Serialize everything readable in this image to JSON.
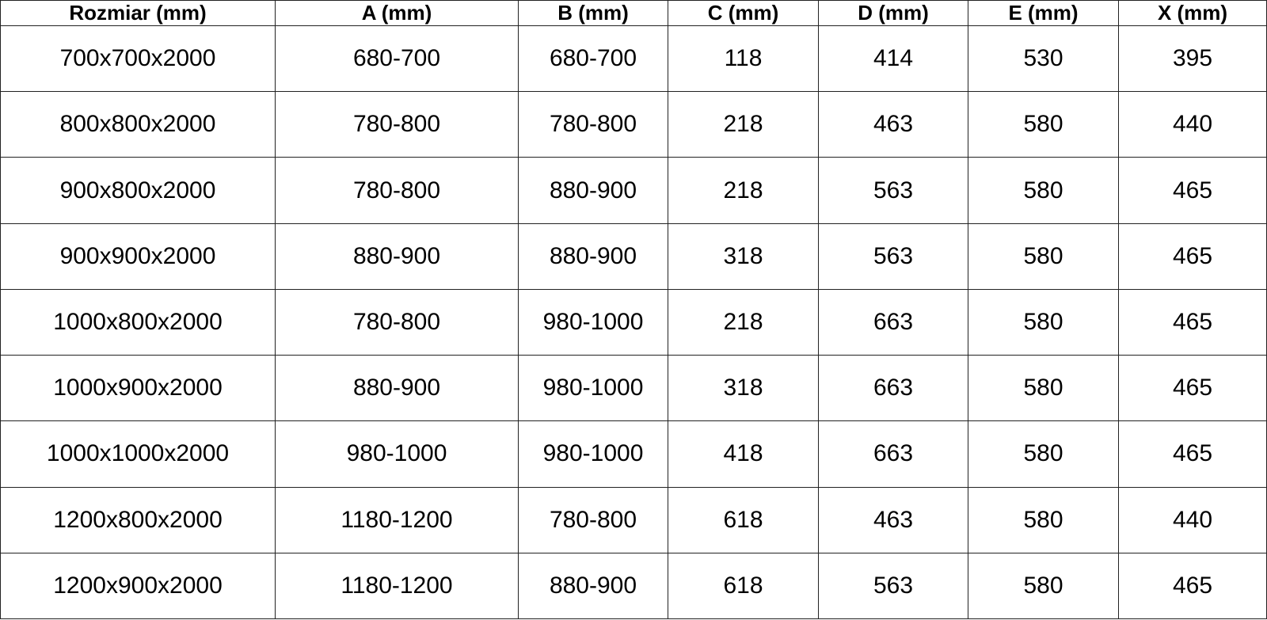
{
  "table": {
    "headers": [
      "Rozmiar (mm)",
      "A (mm)",
      "B (mm)",
      "C (mm)",
      "D (mm)",
      "E (mm)",
      "X (mm)"
    ],
    "rows": [
      [
        "700x700x2000",
        "680-700",
        "680-700",
        "118",
        "414",
        "530",
        "395"
      ],
      [
        "800x800x2000",
        "780-800",
        "780-800",
        "218",
        "463",
        "580",
        "440"
      ],
      [
        "900x800x2000",
        "780-800",
        "880-900",
        "218",
        "563",
        "580",
        "465"
      ],
      [
        "900x900x2000",
        "880-900",
        "880-900",
        "318",
        "563",
        "580",
        "465"
      ],
      [
        "1000x800x2000",
        "780-800",
        "980-1000",
        "218",
        "663",
        "580",
        "465"
      ],
      [
        "1000x900x2000",
        "880-900",
        "980-1000",
        "318",
        "663",
        "580",
        "465"
      ],
      [
        "1000x1000x2000",
        "980-1000",
        "980-1000",
        "418",
        "663",
        "580",
        "465"
      ],
      [
        "1200x800x2000",
        "1180-1200",
        "780-800",
        "618",
        "463",
        "580",
        "440"
      ],
      [
        "1200x900x2000",
        "1180-1200",
        "880-900",
        "618",
        "563",
        "580",
        "465"
      ]
    ]
  }
}
